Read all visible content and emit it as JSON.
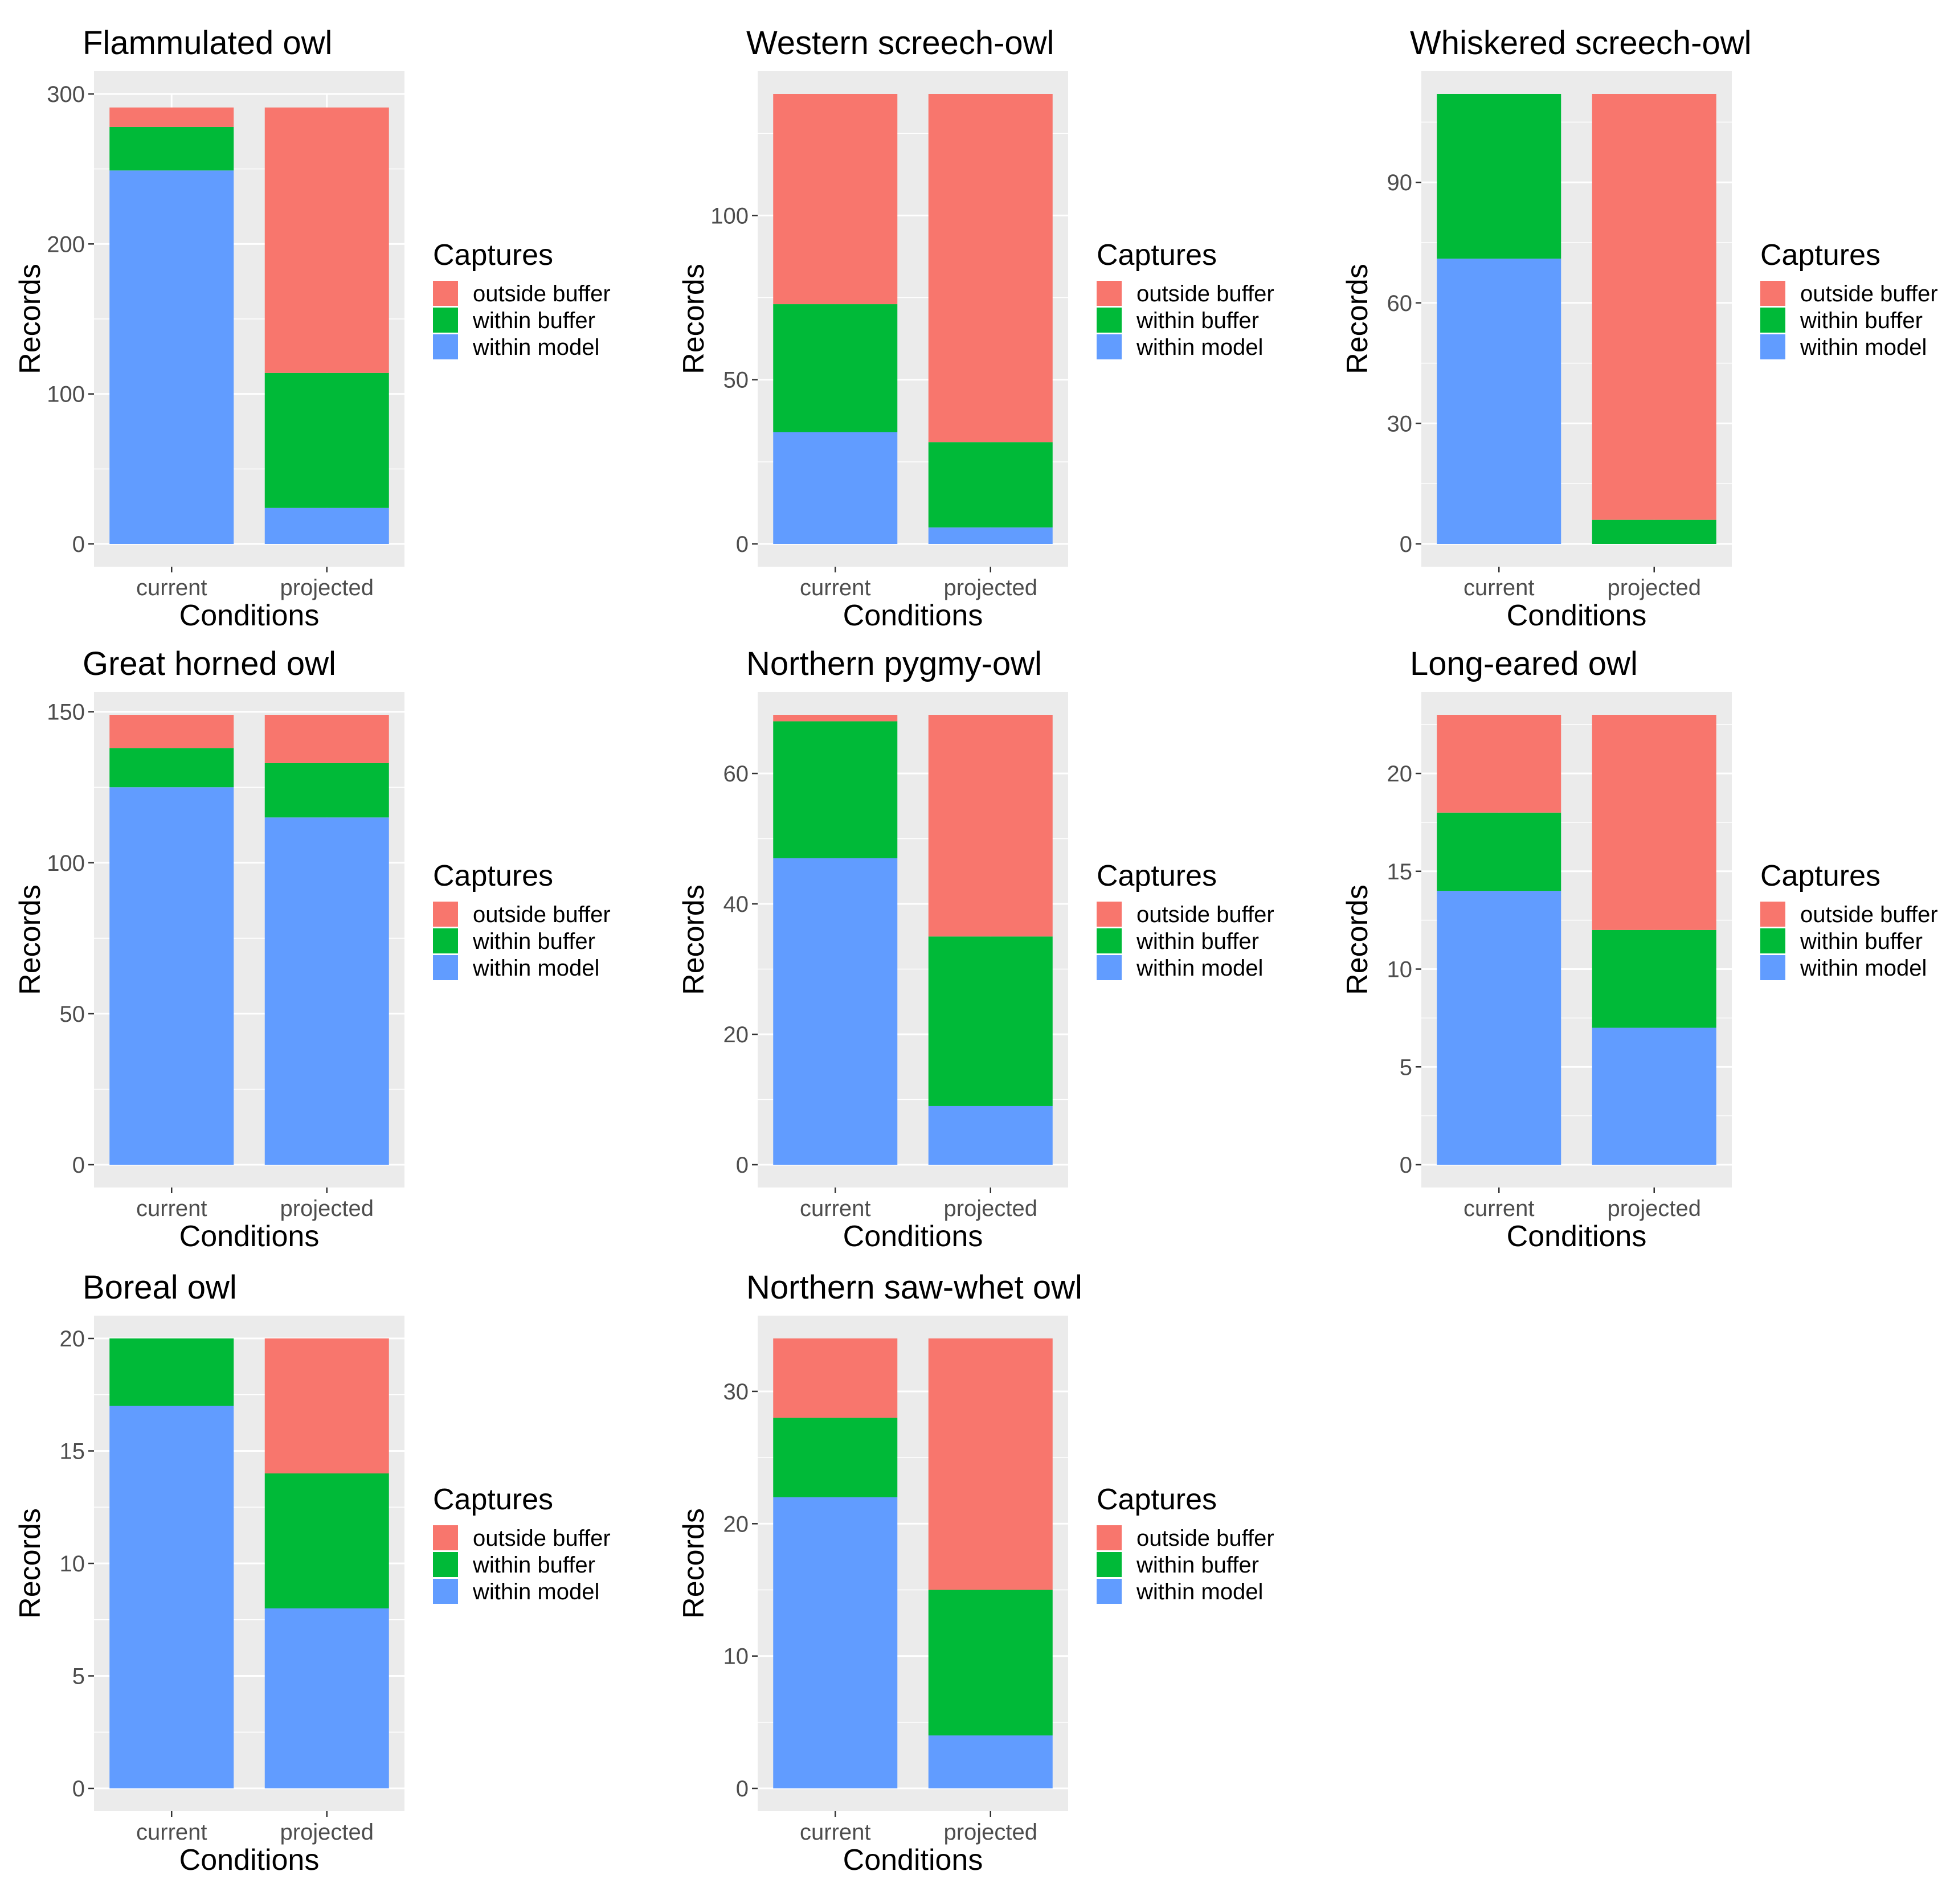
{
  "colors": {
    "outside_buffer": "#f8766d",
    "within_buffer": "#00ba38",
    "within_model": "#619cff"
  },
  "chart_data": [
    {
      "type": "bar",
      "stacked": true,
      "title": "Flammulated owl",
      "xlabel": "Conditions",
      "ylabel": "Records",
      "categories": [
        "current",
        "projected"
      ],
      "ylim": [
        0,
        300
      ],
      "yticks": [
        0,
        100,
        200,
        300
      ],
      "legend_title": "Captures",
      "series": [
        {
          "name": "within model",
          "values": [
            249,
            24
          ]
        },
        {
          "name": "within buffer",
          "values": [
            29,
            90
          ]
        },
        {
          "name": "outside buffer",
          "values": [
            13,
            177
          ]
        }
      ]
    },
    {
      "type": "bar",
      "stacked": true,
      "title": "Western screech-owl",
      "xlabel": "Conditions",
      "ylabel": "Records",
      "categories": [
        "current",
        "projected"
      ],
      "ylim": [
        0,
        137
      ],
      "yticks": [
        0,
        50,
        100
      ],
      "legend_title": "Captures",
      "series": [
        {
          "name": "within model",
          "values": [
            34,
            5
          ]
        },
        {
          "name": "within buffer",
          "values": [
            39,
            26
          ]
        },
        {
          "name": "outside buffer",
          "values": [
            64,
            106
          ]
        }
      ]
    },
    {
      "type": "bar",
      "stacked": true,
      "title": "Whiskered screech-owl",
      "xlabel": "Conditions",
      "ylabel": "Records",
      "categories": [
        "current",
        "projected"
      ],
      "ylim": [
        0,
        112
      ],
      "yticks": [
        0,
        30,
        60,
        90
      ],
      "legend_title": "Captures",
      "series": [
        {
          "name": "within model",
          "values": [
            71,
            0
          ]
        },
        {
          "name": "within buffer",
          "values": [
            41,
            6
          ]
        },
        {
          "name": "outside buffer",
          "values": [
            0,
            106
          ]
        }
      ]
    },
    {
      "type": "bar",
      "stacked": true,
      "title": "Great horned owl",
      "xlabel": "Conditions",
      "ylabel": "Records",
      "categories": [
        "current",
        "projected"
      ],
      "ylim": [
        0,
        149
      ],
      "yticks": [
        0,
        50,
        100,
        150
      ],
      "legend_title": "Captures",
      "series": [
        {
          "name": "within model",
          "values": [
            125,
            115
          ]
        },
        {
          "name": "within buffer",
          "values": [
            13,
            18
          ]
        },
        {
          "name": "outside buffer",
          "values": [
            11,
            16
          ]
        }
      ]
    },
    {
      "type": "bar",
      "stacked": true,
      "title": "Northern pygmy-owl",
      "xlabel": "Conditions",
      "ylabel": "Records",
      "categories": [
        "current",
        "projected"
      ],
      "ylim": [
        0,
        69
      ],
      "yticks": [
        0,
        20,
        40,
        60
      ],
      "legend_title": "Captures",
      "series": [
        {
          "name": "within model",
          "values": [
            47,
            9
          ]
        },
        {
          "name": "within buffer",
          "values": [
            21,
            26
          ]
        },
        {
          "name": "outside buffer",
          "values": [
            1,
            34
          ]
        }
      ]
    },
    {
      "type": "bar",
      "stacked": true,
      "title": "Long-eared owl",
      "xlabel": "Conditions",
      "ylabel": "Records",
      "categories": [
        "current",
        "projected"
      ],
      "ylim": [
        0,
        23
      ],
      "yticks": [
        0,
        5,
        10,
        15,
        20
      ],
      "legend_title": "Captures",
      "series": [
        {
          "name": "within model",
          "values": [
            14,
            7
          ]
        },
        {
          "name": "within buffer",
          "values": [
            4,
            5
          ]
        },
        {
          "name": "outside buffer",
          "values": [
            5,
            11
          ]
        }
      ]
    },
    {
      "type": "bar",
      "stacked": true,
      "title": "Boreal owl",
      "xlabel": "Conditions",
      "ylabel": "Records",
      "categories": [
        "current",
        "projected"
      ],
      "ylim": [
        0,
        20
      ],
      "yticks": [
        0,
        5,
        10,
        15,
        20
      ],
      "legend_title": "Captures",
      "series": [
        {
          "name": "within model",
          "values": [
            17,
            8
          ]
        },
        {
          "name": "within buffer",
          "values": [
            3,
            6
          ]
        },
        {
          "name": "outside buffer",
          "values": [
            0,
            6
          ]
        }
      ]
    },
    {
      "type": "bar",
      "stacked": true,
      "title": "Northern saw-whet owl",
      "xlabel": "Conditions",
      "ylabel": "Records",
      "categories": [
        "current",
        "projected"
      ],
      "ylim": [
        0,
        34
      ],
      "yticks": [
        0,
        10,
        20,
        30
      ],
      "legend_title": "Captures",
      "series": [
        {
          "name": "within model",
          "values": [
            22,
            4
          ]
        },
        {
          "name": "within buffer",
          "values": [
            6,
            11
          ]
        },
        {
          "name": "outside buffer",
          "values": [
            6,
            19
          ]
        }
      ]
    }
  ]
}
